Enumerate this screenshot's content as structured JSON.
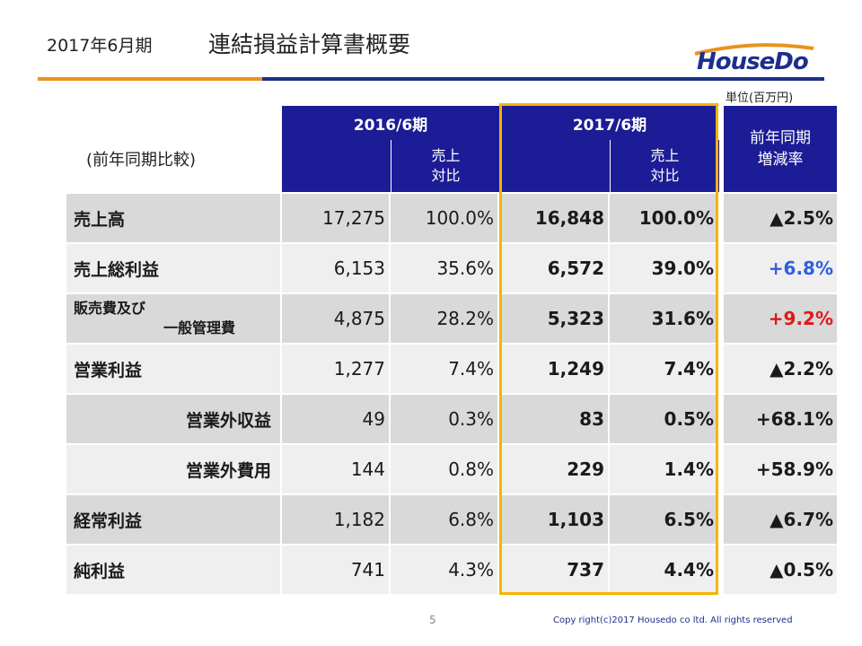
{
  "header": {
    "period": "2017年6月期",
    "title": "連結損益計算書概要",
    "logo_text": "HouseDo"
  },
  "unit": "単位(百万円)",
  "row_label_caption": "(前年同期比較)",
  "columns": {
    "fy2016": "2016/6期",
    "fy2017": "2017/6期",
    "ratio_line1": "売上",
    "ratio_line2": "対比",
    "rate_line1": "前年同期",
    "rate_line2": "増減率"
  },
  "rows": [
    {
      "label": "売上高",
      "v2016": "17,275",
      "r2016": "100.0%",
      "v2017": "16,848",
      "r2017": "100.0%",
      "rate": "▲2.5%",
      "rate_color": "#1a1a1a"
    },
    {
      "label": "売上総利益",
      "v2016": "6,153",
      "r2016": "35.6%",
      "v2017": "6,572",
      "r2017": "39.0%",
      "rate": "+6.8%",
      "rate_color": "#2f5fe0"
    },
    {
      "label_line1": "販売費及び",
      "label_line2": "一般管理費",
      "v2016": "4,875",
      "r2016": "28.2%",
      "v2017": "5,323",
      "r2017": "31.6%",
      "rate": "+9.2%",
      "rate_color": "#e01818"
    },
    {
      "label": "営業利益",
      "v2016": "1,277",
      "r2016": "7.4%",
      "v2017": "1,249",
      "r2017": "7.4%",
      "rate": "▲2.2%",
      "rate_color": "#1a1a1a"
    },
    {
      "label": "営業外収益",
      "v2016": "49",
      "r2016": "0.3%",
      "v2017": "83",
      "r2017": "0.5%",
      "rate": "+68.1%",
      "rate_color": "#1a1a1a"
    },
    {
      "label": "営業外費用",
      "v2016": "144",
      "r2016": "0.8%",
      "v2017": "229",
      "r2017": "1.4%",
      "rate": "+58.9%",
      "rate_color": "#1a1a1a"
    },
    {
      "label": "経常利益",
      "v2016": "1,182",
      "r2016": "6.8%",
      "v2017": "1,103",
      "r2017": "6.5%",
      "rate": "▲6.7%",
      "rate_color": "#1a1a1a"
    },
    {
      "label": "純利益",
      "v2016": "741",
      "r2016": "4.3%",
      "v2017": "737",
      "r2017": "4.4%",
      "rate": "▲0.5%",
      "rate_color": "#1a1a1a"
    }
  ],
  "footer": {
    "page_number": "5",
    "copyright": "Copy right(c)2017 Housedo co ltd. All rights reserved"
  },
  "colors": {
    "header_bg": "#1c1c96",
    "highlight_border": "#f5b400",
    "rule_orange": "#e8921e",
    "rule_blue": "#1c2f8c"
  }
}
